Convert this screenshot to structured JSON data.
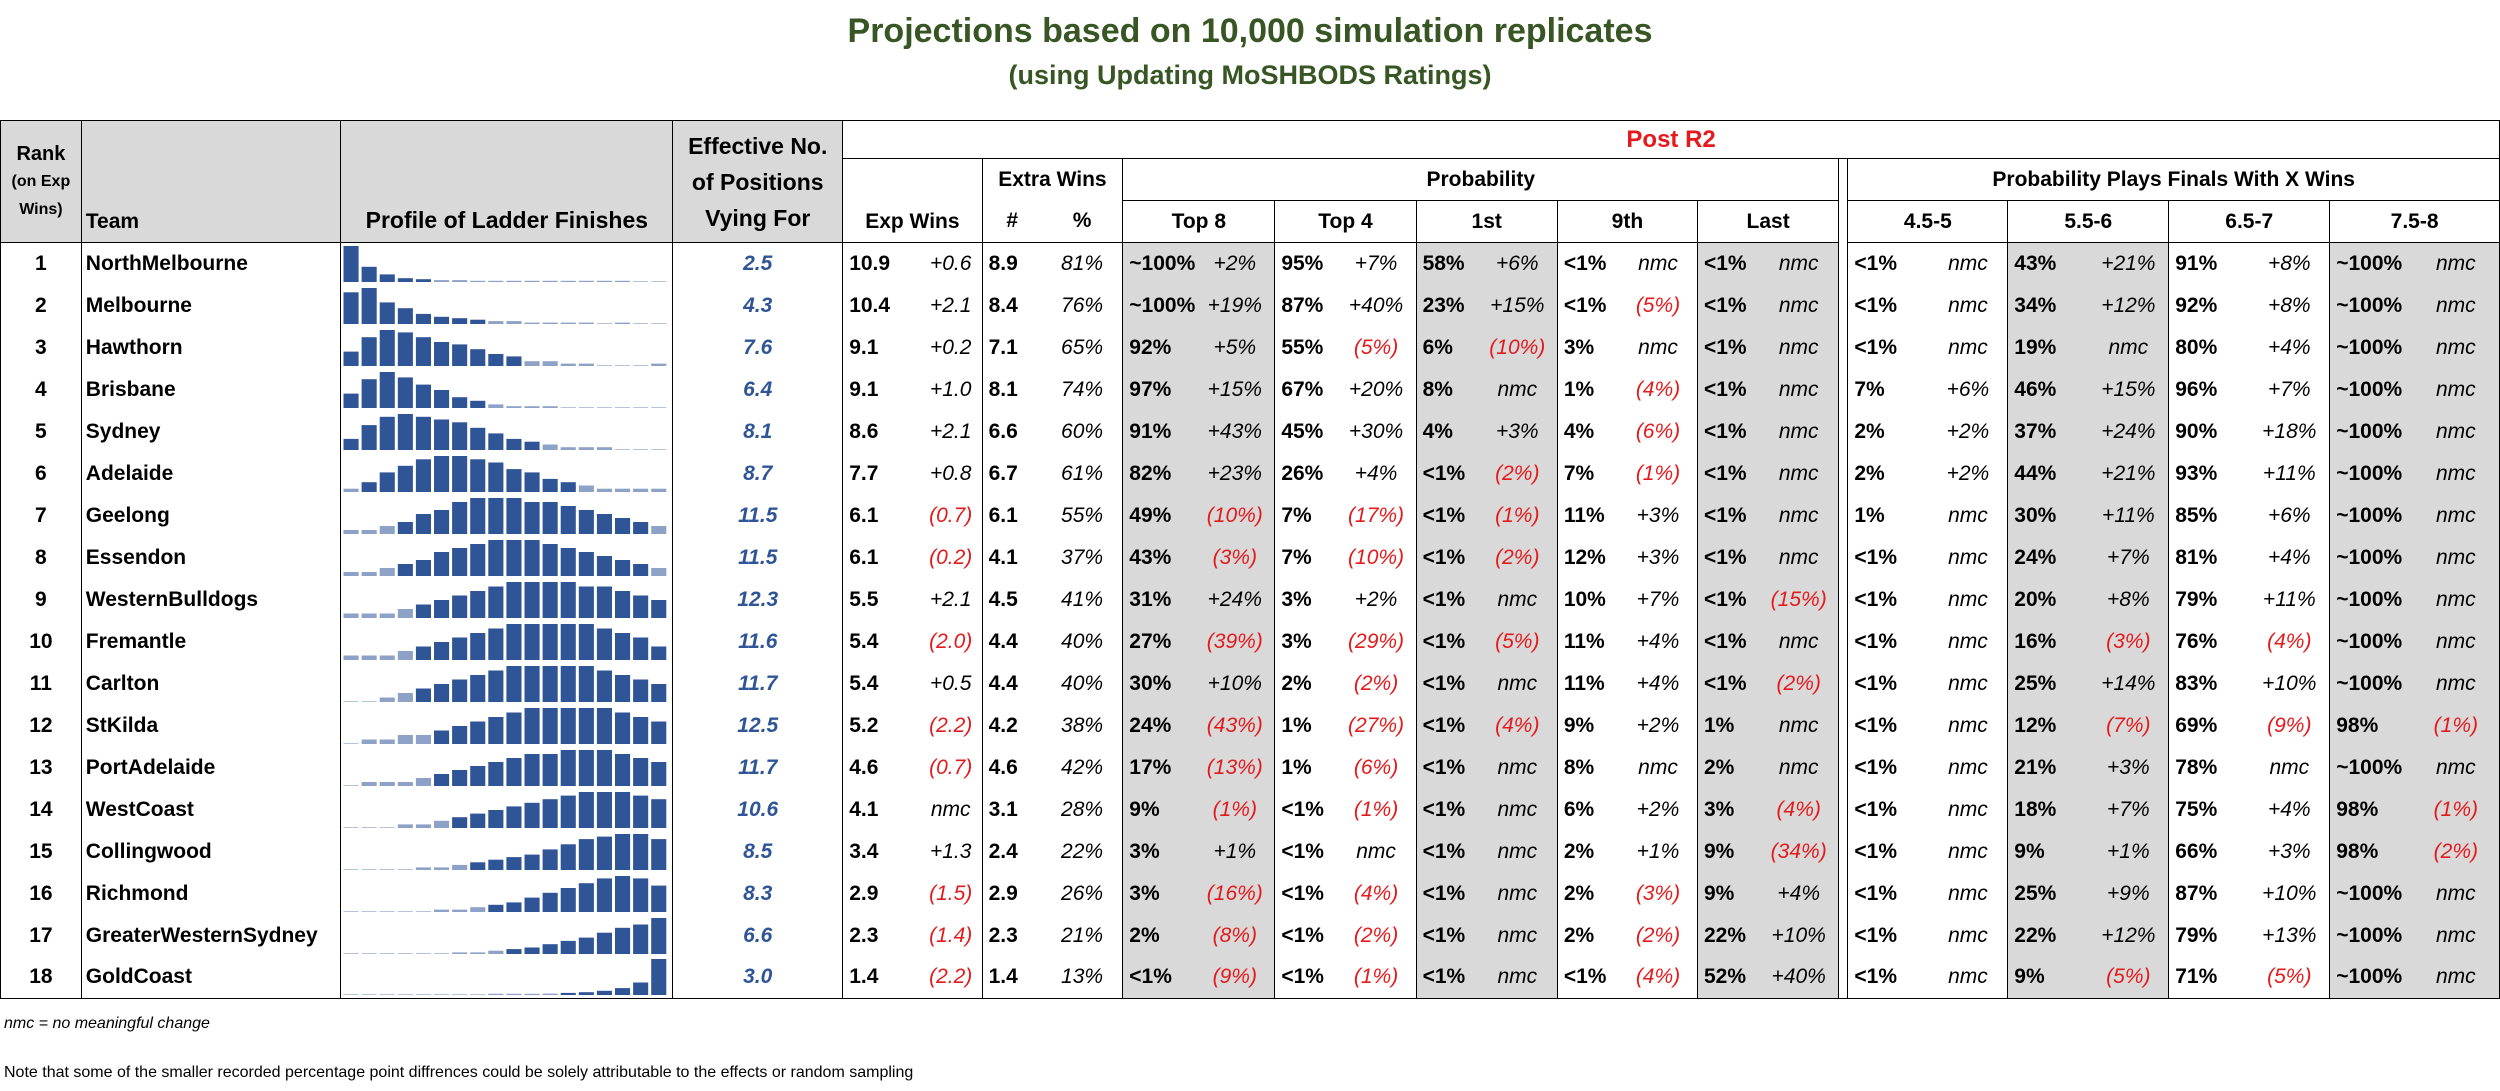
{
  "title": "Projections based on 10,000 simulation replicates",
  "subtitle": "(using Updating MoSHBODS Ratings)",
  "headers": {
    "rank_line1": "Rank",
    "rank_line2": "(on Exp",
    "rank_line3": "Wins)",
    "team": "Team",
    "profile": "Profile of Ladder Finishes",
    "eff_line1": "Effective No.",
    "eff_line2": "of Positions",
    "eff_line3": "Vying For",
    "post": "Post R2",
    "exp_wins": "Exp Wins",
    "extra_wins": "Extra Wins",
    "hash": "#",
    "pct": "%",
    "probability": "Probability",
    "finals": "Probability Plays Finals With X Wins",
    "prob_cols": [
      "Top 8",
      "Top 4",
      "1st",
      "9th",
      "Last"
    ],
    "fin_cols": [
      "4.5-5",
      "5.5-6",
      "6.5-7",
      "7.5-8"
    ]
  },
  "footnote": "nmc = no meaningful change",
  "note": "Note that some of the smaller recorded percentage point diffrences could be solely attributable to the effects or random sampling",
  "colors": {
    "title": "#375623",
    "profile_bar": "#2f5597",
    "negative": "#e41a1c",
    "shade": "#d9d9d9"
  },
  "chart_data": {
    "type": "table",
    "rows": [
      {
        "rank": "1",
        "team": "NorthMelbourne",
        "eff": "2.5",
        "exp": "10.9",
        "exp_c": "+0.6",
        "xw": "8.9",
        "xp": "81%",
        "top8": "~100%",
        "top8_c": "+2%",
        "top4": "95%",
        "top4_c": "+7%",
        "p1": "58%",
        "p1_c": "+6%",
        "p9": "<1%",
        "p9_c": "nmc",
        "last": "<1%",
        "last_c": "nmc",
        "f1": "<1%",
        "f1_c": "nmc",
        "f2": "43%",
        "f2_c": "+21%",
        "f3": "91%",
        "f3_c": "+8%",
        "f4": "~100%",
        "f4_c": "nmc",
        "profile": [
          38,
          16,
          8,
          4,
          3,
          2,
          2,
          1,
          1,
          1,
          1,
          1,
          1,
          1,
          1,
          1,
          0,
          0
        ]
      },
      {
        "rank": "2",
        "team": "Melbourne",
        "eff": "4.3",
        "exp": "10.4",
        "exp_c": "+2.1",
        "xw": "8.4",
        "xp": "76%",
        "top8": "~100%",
        "top8_c": "+19%",
        "top4": "87%",
        "top4_c": "+40%",
        "p1": "23%",
        "p1_c": "+15%",
        "p9": "<1%",
        "p9_c": "(5%)",
        "last": "<1%",
        "last_c": "nmc",
        "f1": "<1%",
        "f1_c": "nmc",
        "f2": "34%",
        "f2_c": "+12%",
        "f3": "92%",
        "f3_c": "+8%",
        "f4": "~100%",
        "f4_c": "nmc",
        "profile": [
          22,
          25,
          15,
          11,
          7,
          5,
          4,
          3,
          2,
          2,
          1,
          1,
          1,
          1,
          0,
          1,
          0,
          0
        ]
      },
      {
        "rank": "3",
        "team": "Hawthorn",
        "eff": "7.6",
        "exp": "9.1",
        "exp_c": "+0.2",
        "xw": "7.1",
        "xp": "65%",
        "top8": "92%",
        "top8_c": "+5%",
        "top4": "55%",
        "top4_c": "(5%)",
        "p1": "6%",
        "p1_c": "(10%)",
        "p9": "3%",
        "p9_c": "nmc",
        "last": "<1%",
        "last_c": "nmc",
        "f1": "<1%",
        "f1_c": "nmc",
        "f2": "19%",
        "f2_c": "nmc",
        "f3": "80%",
        "f3_c": "+4%",
        "f4": "~100%",
        "f4_c": "nmc",
        "profile": [
          6,
          12,
          15,
          14,
          12,
          10,
          9,
          7,
          5,
          4,
          2,
          2,
          1,
          1,
          0,
          0,
          0,
          1
        ]
      },
      {
        "rank": "4",
        "team": "Brisbane",
        "eff": "6.4",
        "exp": "9.1",
        "exp_c": "+1.0",
        "xw": "8.1",
        "xp": "74%",
        "top8": "97%",
        "top8_c": "+15%",
        "top4": "67%",
        "top4_c": "+20%",
        "p1": "8%",
        "p1_c": "nmc",
        "p9": "1%",
        "p9_c": "(4%)",
        "last": "<1%",
        "last_c": "nmc",
        "f1": "7%",
        "f1_c": "+6%",
        "f2": "46%",
        "f2_c": "+15%",
        "f3": "96%",
        "f3_c": "+7%",
        "f4": "~100%",
        "f4_c": "nmc",
        "profile": [
          8,
          16,
          20,
          17,
          13,
          10,
          6,
          4,
          2,
          1,
          1,
          1,
          0,
          0,
          0,
          0,
          0,
          0
        ]
      },
      {
        "rank": "5",
        "team": "Sydney",
        "eff": "8.1",
        "exp": "8.6",
        "exp_c": "+2.1",
        "xw": "6.6",
        "xp": "60%",
        "top8": "91%",
        "top8_c": "+43%",
        "top4": "45%",
        "top4_c": "+30%",
        "p1": "4%",
        "p1_c": "+3%",
        "p9": "4%",
        "p9_c": "(6%)",
        "last": "<1%",
        "last_c": "nmc",
        "f1": "2%",
        "f1_c": "+2%",
        "f2": "37%",
        "f2_c": "+24%",
        "f3": "90%",
        "f3_c": "+18%",
        "f4": "~100%",
        "f4_c": "nmc",
        "profile": [
          4,
          9,
          12,
          13,
          12,
          11,
          10,
          8,
          6,
          4,
          3,
          2,
          1,
          1,
          1,
          0,
          0,
          0
        ]
      },
      {
        "rank": "6",
        "team": "Adelaide",
        "eff": "8.7",
        "exp": "7.7",
        "exp_c": "+0.8",
        "xw": "6.7",
        "xp": "61%",
        "top8": "82%",
        "top8_c": "+23%",
        "top4": "26%",
        "top4_c": "+4%",
        "p1": "<1%",
        "p1_c": "(2%)",
        "p9": "7%",
        "p9_c": "(1%)",
        "last": "<1%",
        "last_c": "nmc",
        "f1": "2%",
        "f1_c": "+2%",
        "f2": "44%",
        "f2_c": "+21%",
        "f3": "93%",
        "f3_c": "+11%",
        "f4": "~100%",
        "f4_c": "nmc",
        "profile": [
          1,
          3,
          6,
          8,
          10,
          11,
          11,
          10,
          9,
          7,
          6,
          4,
          3,
          2,
          1,
          1,
          1,
          1
        ]
      },
      {
        "rank": "7",
        "team": "Geelong",
        "eff": "11.5",
        "exp": "6.1",
        "exp_c": "(0.7)",
        "xw": "6.1",
        "xp": "55%",
        "top8": "49%",
        "top8_c": "(10%)",
        "top4": "7%",
        "top4_c": "(17%)",
        "p1": "<1%",
        "p1_c": "(1%)",
        "p9": "11%",
        "p9_c": "+3%",
        "last": "<1%",
        "last_c": "nmc",
        "f1": "1%",
        "f1_c": "nmc",
        "f2": "30%",
        "f2_c": "+11%",
        "f3": "85%",
        "f3_c": "+6%",
        "f4": "~100%",
        "f4_c": "nmc",
        "profile": [
          1,
          1,
          2,
          3,
          5,
          6,
          8,
          9,
          9,
          9,
          8,
          8,
          7,
          6,
          5,
          4,
          3,
          2
        ]
      },
      {
        "rank": "8",
        "team": "Essendon",
        "eff": "11.5",
        "exp": "6.1",
        "exp_c": "(0.2)",
        "xw": "4.1",
        "xp": "37%",
        "top8": "43%",
        "top8_c": "(3%)",
        "top4": "7%",
        "top4_c": "(10%)",
        "p1": "<1%",
        "p1_c": "(2%)",
        "p9": "12%",
        "p9_c": "+3%",
        "last": "<1%",
        "last_c": "nmc",
        "f1": "<1%",
        "f1_c": "nmc",
        "f2": "24%",
        "f2_c": "+7%",
        "f3": "81%",
        "f3_c": "+4%",
        "f4": "~100%",
        "f4_c": "nmc",
        "profile": [
          1,
          1,
          2,
          3,
          4,
          6,
          7,
          8,
          9,
          9,
          9,
          8,
          7,
          6,
          5,
          4,
          3,
          2
        ]
      },
      {
        "rank": "9",
        "team": "WesternBulldogs",
        "eff": "12.3",
        "exp": "5.5",
        "exp_c": "+2.1",
        "xw": "4.5",
        "xp": "41%",
        "top8": "31%",
        "top8_c": "+24%",
        "top4": "3%",
        "top4_c": "+2%",
        "p1": "<1%",
        "p1_c": "nmc",
        "p9": "10%",
        "p9_c": "+7%",
        "last": "<1%",
        "last_c": "(15%)",
        "f1": "<1%",
        "f1_c": "nmc",
        "f2": "20%",
        "f2_c": "+8%",
        "f3": "79%",
        "f3_c": "+11%",
        "f4": "~100%",
        "f4_c": "nmc",
        "profile": [
          1,
          1,
          1,
          2,
          3,
          4,
          5,
          6,
          7,
          8,
          8,
          8,
          8,
          7,
          7,
          6,
          5,
          4
        ]
      },
      {
        "rank": "10",
        "team": "Fremantle",
        "eff": "11.6",
        "exp": "5.4",
        "exp_c": "(2.0)",
        "xw": "4.4",
        "xp": "40%",
        "top8": "27%",
        "top8_c": "(39%)",
        "top4": "3%",
        "top4_c": "(29%)",
        "p1": "<1%",
        "p1_c": "(5%)",
        "p9": "11%",
        "p9_c": "+4%",
        "last": "<1%",
        "last_c": "nmc",
        "f1": "<1%",
        "f1_c": "nmc",
        "f2": "16%",
        "f2_c": "(3%)",
        "f3": "76%",
        "f3_c": "(4%)",
        "f4": "~100%",
        "f4_c": "nmc",
        "profile": [
          1,
          1,
          1,
          2,
          3,
          4,
          5,
          6,
          7,
          8,
          8,
          8,
          8,
          8,
          7,
          6,
          5,
          3
        ]
      },
      {
        "rank": "11",
        "team": "Carlton",
        "eff": "11.7",
        "exp": "5.4",
        "exp_c": "+0.5",
        "xw": "4.4",
        "xp": "40%",
        "top8": "30%",
        "top8_c": "+10%",
        "top4": "2%",
        "top4_c": "(2%)",
        "p1": "<1%",
        "p1_c": "nmc",
        "p9": "11%",
        "p9_c": "+4%",
        "last": "<1%",
        "last_c": "(2%)",
        "f1": "<1%",
        "f1_c": "nmc",
        "f2": "25%",
        "f2_c": "+14%",
        "f3": "83%",
        "f3_c": "+10%",
        "f4": "~100%",
        "f4_c": "nmc",
        "profile": [
          0,
          0,
          1,
          2,
          3,
          4,
          5,
          6,
          7,
          8,
          8,
          8,
          8,
          8,
          7,
          6,
          5,
          4
        ]
      },
      {
        "rank": "12",
        "team": "StKilda",
        "eff": "12.5",
        "exp": "5.2",
        "exp_c": "(2.2)",
        "xw": "4.2",
        "xp": "38%",
        "top8": "24%",
        "top8_c": "(43%)",
        "top4": "1%",
        "top4_c": "(27%)",
        "p1": "<1%",
        "p1_c": "(4%)",
        "p9": "9%",
        "p9_c": "+2%",
        "last": "1%",
        "last_c": "nmc",
        "f1": "<1%",
        "f1_c": "nmc",
        "f2": "12%",
        "f2_c": "(7%)",
        "f3": "69%",
        "f3_c": "(9%)",
        "f4": "98%",
        "f4_c": "(1%)",
        "profile": [
          0,
          1,
          1,
          2,
          2,
          3,
          4,
          5,
          6,
          7,
          8,
          8,
          8,
          8,
          8,
          7,
          6,
          5
        ]
      },
      {
        "rank": "13",
        "team": "PortAdelaide",
        "eff": "11.7",
        "exp": "4.6",
        "exp_c": "(0.7)",
        "xw": "4.6",
        "xp": "42%",
        "top8": "17%",
        "top8_c": "(13%)",
        "top4": "1%",
        "top4_c": "(6%)",
        "p1": "<1%",
        "p1_c": "nmc",
        "p9": "8%",
        "p9_c": "nmc",
        "last": "2%",
        "last_c": "nmc",
        "f1": "<1%",
        "f1_c": "nmc",
        "f2": "21%",
        "f2_c": "+3%",
        "f3": "78%",
        "f3_c": "nmc",
        "f4": "~100%",
        "f4_c": "nmc",
        "profile": [
          0,
          1,
          1,
          1,
          2,
          3,
          4,
          5,
          6,
          7,
          8,
          8,
          9,
          9,
          9,
          8,
          7,
          6
        ]
      },
      {
        "rank": "14",
        "team": "WestCoast",
        "eff": "10.6",
        "exp": "4.1",
        "exp_c": "nmc",
        "xw": "3.1",
        "xp": "28%",
        "top8": "9%",
        "top8_c": "(1%)",
        "top4": "<1%",
        "top4_c": "(1%)",
        "p1": "<1%",
        "p1_c": "nmc",
        "p9": "6%",
        "p9_c": "+2%",
        "last": "3%",
        "last_c": "(4%)",
        "f1": "<1%",
        "f1_c": "nmc",
        "f2": "18%",
        "f2_c": "+7%",
        "f3": "75%",
        "f3_c": "+4%",
        "f4": "98%",
        "f4_c": "(1%)",
        "profile": [
          0,
          0,
          0,
          1,
          1,
          2,
          3,
          4,
          5,
          6,
          7,
          8,
          9,
          10,
          10,
          10,
          9,
          8
        ]
      },
      {
        "rank": "15",
        "team": "Collingwood",
        "eff": "8.5",
        "exp": "3.4",
        "exp_c": "+1.3",
        "xw": "2.4",
        "xp": "22%",
        "top8": "3%",
        "top8_c": "+1%",
        "top4": "<1%",
        "top4_c": "nmc",
        "p1": "<1%",
        "p1_c": "nmc",
        "p9": "2%",
        "p9_c": "+1%",
        "last": "9%",
        "last_c": "(34%)",
        "f1": "<1%",
        "f1_c": "nmc",
        "f2": "9%",
        "f2_c": "+1%",
        "f3": "66%",
        "f3_c": "+3%",
        "f4": "98%",
        "f4_c": "(2%)",
        "profile": [
          0,
          0,
          0,
          0,
          1,
          1,
          2,
          3,
          4,
          5,
          6,
          8,
          10,
          12,
          13,
          14,
          14,
          12
        ]
      },
      {
        "rank": "16",
        "team": "Richmond",
        "eff": "8.3",
        "exp": "2.9",
        "exp_c": "(1.5)",
        "xw": "2.9",
        "xp": "26%",
        "top8": "3%",
        "top8_c": "(16%)",
        "top4": "<1%",
        "top4_c": "(4%)",
        "p1": "<1%",
        "p1_c": "nmc",
        "p9": "2%",
        "p9_c": "(3%)",
        "last": "9%",
        "last_c": "+4%",
        "f1": "<1%",
        "f1_c": "nmc",
        "f2": "25%",
        "f2_c": "+9%",
        "f3": "87%",
        "f3_c": "+10%",
        "f4": "~100%",
        "f4_c": "nmc",
        "profile": [
          0,
          0,
          0,
          0,
          0,
          1,
          1,
          2,
          3,
          4,
          6,
          8,
          10,
          12,
          14,
          15,
          14,
          11
        ]
      },
      {
        "rank": "17",
        "team": "GreaterWesternSydney",
        "eff": "6.6",
        "exp": "2.3",
        "exp_c": "(1.4)",
        "xw": "2.3",
        "xp": "21%",
        "top8": "2%",
        "top8_c": "(8%)",
        "top4": "<1%",
        "top4_c": "(2%)",
        "p1": "<1%",
        "p1_c": "nmc",
        "p9": "2%",
        "p9_c": "(2%)",
        "last": "22%",
        "last_c": "+10%",
        "f1": "<1%",
        "f1_c": "nmc",
        "f2": "22%",
        "f2_c": "+12%",
        "f3": "79%",
        "f3_c": "+13%",
        "f4": "~100%",
        "f4_c": "nmc",
        "profile": [
          0,
          0,
          0,
          0,
          0,
          0,
          1,
          1,
          2,
          3,
          4,
          6,
          8,
          10,
          13,
          16,
          18,
          22
        ]
      },
      {
        "rank": "18",
        "team": "GoldCoast",
        "eff": "3.0",
        "exp": "1.4",
        "exp_c": "(2.2)",
        "xw": "1.4",
        "xp": "13%",
        "top8": "<1%",
        "top8_c": "(9%)",
        "top4": "<1%",
        "top4_c": "(1%)",
        "p1": "<1%",
        "p1_c": "nmc",
        "p9": "<1%",
        "p9_c": "(4%)",
        "last": "52%",
        "last_c": "+40%",
        "f1": "<1%",
        "f1_c": "nmc",
        "f2": "9%",
        "f2_c": "(5%)",
        "f3": "71%",
        "f3_c": "(5%)",
        "f4": "~100%",
        "f4_c": "nmc",
        "profile": [
          0,
          0,
          0,
          0,
          0,
          0,
          0,
          0,
          1,
          1,
          1,
          2,
          3,
          4,
          6,
          10,
          18,
          52
        ]
      }
    ]
  }
}
